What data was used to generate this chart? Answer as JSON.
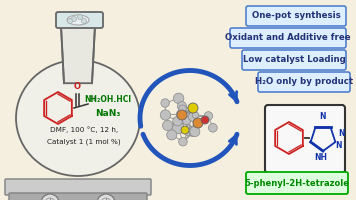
{
  "bg_color": "#f5efe0",
  "box_labels": [
    "One-pot synthesis",
    "Oxidant and Additive free",
    "Low catalyst Loading",
    "H₂O only by product"
  ],
  "box_border_color": "#4477cc",
  "box_fill_color": "#ddeeff",
  "box_text_color": "#223377",
  "flask_text_lines": [
    [
      "NH₂OH.HCl",
      "#007700",
      5.5
    ],
    [
      "NaN₃",
      "#007700",
      6.5
    ],
    [
      "DMF, 100 °C, 12 h,",
      "#222222",
      5.2
    ],
    [
      "Catalyst 1 (1 mol %)",
      "#222222",
      5.2
    ]
  ],
  "product_label": "5-phenyl-2H-tetrazole",
  "product_label_color": "#008800",
  "product_box_border": "#00aa00",
  "product_box_fill": "#ddffdd",
  "arrow_color": "#2255bb",
  "benz_color": "#cc2222",
  "tetrazole_color": "#1133aa",
  "crystal_gray": "#aaaaaa",
  "hotplate_color": "#bbbbbb"
}
